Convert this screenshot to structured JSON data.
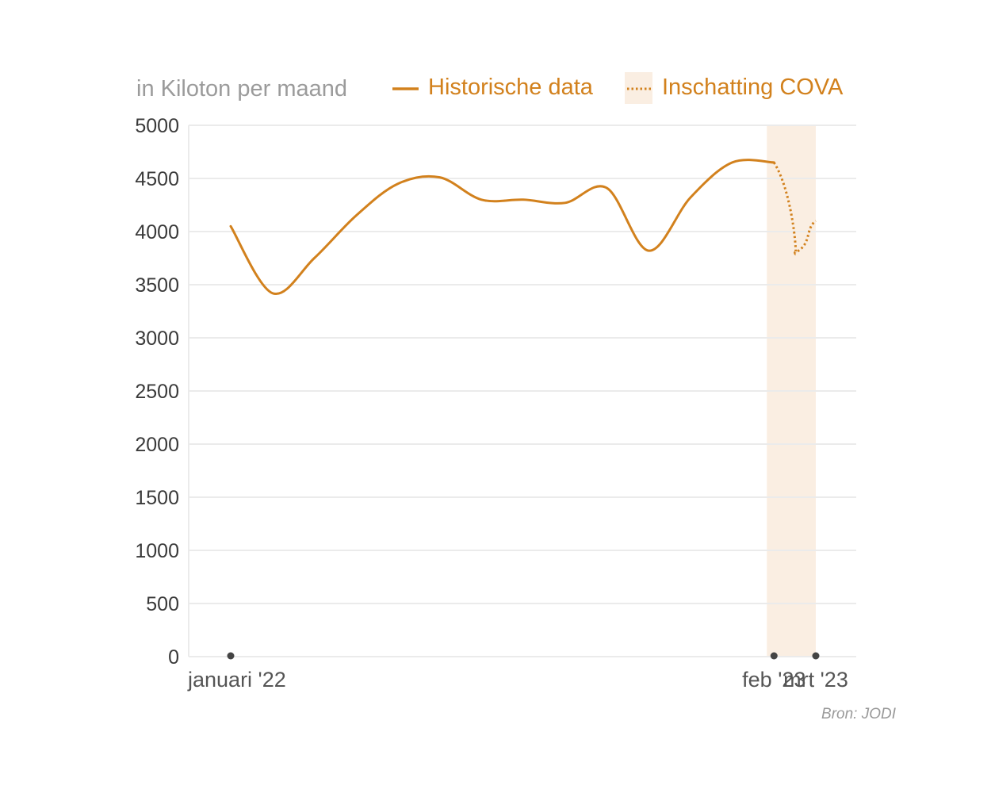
{
  "chart_data": {
    "type": "line",
    "unit_label": "in Kiloton per maand",
    "legend": {
      "historical_label": "Historische data",
      "estimate_label": "Inschatting COVA"
    },
    "colors": {
      "line": "#d2811d",
      "estimate_band": "#faeee2",
      "grid": "#ebebeb",
      "axis_text": "#3a3a3a",
      "marker": "#444444"
    },
    "ylim": [
      0,
      5000
    ],
    "yticks": [
      0,
      500,
      1000,
      1500,
      2000,
      2500,
      3000,
      3500,
      4000,
      4500,
      5000
    ],
    "ytick_labels": [
      "0",
      "500",
      "1000",
      "1500",
      "2000",
      "2500",
      "3000",
      "3500",
      "4000",
      "4500",
      "5000"
    ],
    "x_months": [
      "2022-01",
      "2022-02",
      "2022-03",
      "2022-04",
      "2022-05",
      "2022-06",
      "2022-07",
      "2022-08",
      "2022-09",
      "2022-10",
      "2022-11",
      "2022-12",
      "2023-01",
      "2023-02",
      "2023-03"
    ],
    "x_tick_labels": [
      {
        "month": "2022-01",
        "label": "januari '22"
      },
      {
        "month": "2023-02",
        "label": "feb '23"
      },
      {
        "month": "2023-03",
        "label": "mrt '23"
      }
    ],
    "series": [
      {
        "name": "Historische data",
        "style": "solid",
        "x": [
          "2022-01",
          "2022-02",
          "2022-03",
          "2022-04",
          "2022-05",
          "2022-06",
          "2022-07",
          "2022-08",
          "2022-09",
          "2022-10",
          "2022-11",
          "2022-12",
          "2023-01",
          "2023-02"
        ],
        "values": [
          4050,
          3420,
          3750,
          4150,
          4450,
          4510,
          4300,
          4300,
          4270,
          4410,
          3820,
          4320,
          4650,
          4650
        ]
      },
      {
        "name": "Inschatting COVA",
        "style": "dotted",
        "x": [
          "2023-02",
          "2023-03"
        ],
        "values": [
          4650,
          4100
        ]
      }
    ],
    "estimate_band": {
      "from": "2023-02",
      "to": "2023-03"
    },
    "grid": true,
    "legend_position": "top-right"
  },
  "source": "Bron: JODI"
}
